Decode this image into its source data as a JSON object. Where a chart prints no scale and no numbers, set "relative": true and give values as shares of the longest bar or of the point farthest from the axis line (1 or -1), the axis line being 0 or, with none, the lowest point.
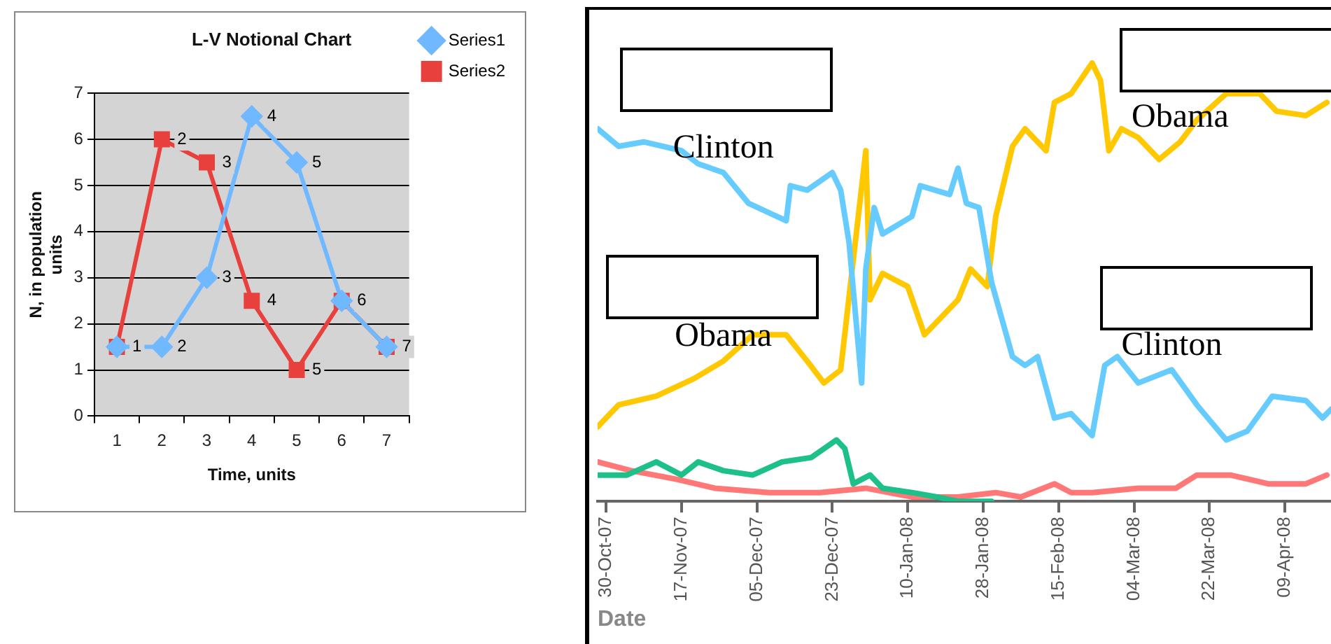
{
  "chart_data": [
    {
      "type": "line",
      "title": "L-V Notional Chart",
      "xlabel": "Time, units",
      "ylabel": "N, in population units",
      "categories": [
        "1",
        "2",
        "3",
        "4",
        "5",
        "6",
        "7"
      ],
      "ylim": [
        0,
        7
      ],
      "yticks": [
        0,
        1,
        2,
        3,
        4,
        5,
        6,
        7
      ],
      "grid": "y",
      "legend": "right",
      "series": [
        {
          "name": "Series1",
          "color": "#70b8ff",
          "marker": "diamond",
          "values": [
            1.5,
            1.5,
            3,
            6.5,
            5.5,
            2.5,
            1.5
          ]
        },
        {
          "name": "Series2",
          "color": "#e8403c",
          "marker": "square",
          "values": [
            1.5,
            6,
            5.5,
            2.5,
            1,
            2.5,
            1.5
          ]
        }
      ],
      "annotations": [
        {
          "text": "1",
          "x": "1",
          "y": 1.5
        },
        {
          "text": "2",
          "x": "2",
          "y": 1.5
        },
        {
          "text": "3",
          "x": "3",
          "y": 3
        },
        {
          "text": "4",
          "x": "4",
          "y": 6.5
        },
        {
          "text": "5",
          "x": "5",
          "y": 5.5
        },
        {
          "text": "2",
          "x": "2",
          "y": 6
        },
        {
          "text": "3",
          "x": "3",
          "y": 5.5
        },
        {
          "text": "4",
          "x": "4",
          "y": 2.5
        },
        {
          "text": "5",
          "x": "5",
          "y": 1
        },
        {
          "text": "6",
          "x": "6",
          "y": 2.5
        },
        {
          "text": "7",
          "x": "7",
          "y": 1.5
        }
      ]
    },
    {
      "type": "line",
      "xlabel": "Date",
      "relative": true,
      "marker": "none",
      "xlim": [
        "2007-10-28",
        "2008-04-20"
      ],
      "xticks": [
        {
          "value": "2007-10-30",
          "label": "30-Oct-07"
        },
        {
          "value": "2007-11-17",
          "label": "17-Nov-07"
        },
        {
          "value": "2007-12-05",
          "label": "05-Dec-07"
        },
        {
          "value": "2007-12-23",
          "label": "23-Dec-07"
        },
        {
          "value": "2008-01-10",
          "label": "10-Jan-08"
        },
        {
          "value": "2008-01-28",
          "label": "28-Jan-08"
        },
        {
          "value": "2008-02-15",
          "label": "15-Feb-08"
        },
        {
          "value": "2008-03-04",
          "label": "04-Mar-08"
        },
        {
          "value": "2008-03-22",
          "label": "22-Mar-08"
        },
        {
          "value": "2008-04-09",
          "label": "09-Apr-08"
        }
      ],
      "annotations": [
        {
          "text": "Clinton",
          "x": "2007-11-27",
          "y": 0.75
        },
        {
          "text": "Obama",
          "x": "2007-11-27",
          "y": 0.32
        },
        {
          "text": "Obama",
          "x": "2008-03-15",
          "y": 0.82
        },
        {
          "text": "Clinton",
          "x": "2008-03-13",
          "y": 0.3
        }
      ],
      "series": [
        {
          "color": "#66ccff",
          "x": [
            "2007-10-28",
            "2007-11-02",
            "2007-11-08",
            "2007-11-17",
            "2007-11-21",
            "2007-11-27",
            "2007-12-03",
            "2007-12-12",
            "2007-12-13",
            "2007-12-17",
            "2007-12-23",
            "2007-12-25",
            "2007-12-27",
            "2007-12-30",
            "2007-12-31",
            "2008-01-02",
            "2008-01-04",
            "2008-01-11",
            "2008-01-13",
            "2008-01-20",
            "2008-01-22",
            "2008-01-24",
            "2008-01-27",
            "2008-01-30",
            "2008-02-04",
            "2008-02-07",
            "2008-02-10",
            "2008-02-14",
            "2008-02-18",
            "2008-02-23",
            "2008-02-26",
            "2008-02-29",
            "2008-03-05",
            "2008-03-13",
            "2008-03-19",
            "2008-03-26",
            "2008-03-31",
            "2008-04-06",
            "2008-04-14",
            "2008-04-18",
            "2008-04-20"
          ],
          "values": [
            0.85,
            0.81,
            0.82,
            0.8,
            0.77,
            0.75,
            0.68,
            0.64,
            0.72,
            0.71,
            0.75,
            0.71,
            0.59,
            0.27,
            0.53,
            0.67,
            0.61,
            0.65,
            0.72,
            0.7,
            0.76,
            0.68,
            0.67,
            0.5,
            0.33,
            0.31,
            0.33,
            0.19,
            0.2,
            0.15,
            0.31,
            0.33,
            0.27,
            0.3,
            0.22,
            0.14,
            0.16,
            0.24,
            0.23,
            0.19,
            0.21
          ]
        },
        {
          "color": "#ffc800",
          "x": [
            "2007-10-28",
            "2007-11-02",
            "2007-11-11",
            "2007-11-20",
            "2007-11-27",
            "2007-12-04",
            "2007-12-12",
            "2007-12-17",
            "2007-12-21",
            "2007-12-25",
            "2007-12-28",
            "2007-12-31",
            "2008-01-01",
            "2008-01-04",
            "2008-01-10",
            "2008-01-14",
            "2008-01-20",
            "2008-01-22",
            "2008-01-25",
            "2008-01-29",
            "2008-01-31",
            "2008-02-04",
            "2008-02-07",
            "2008-02-12",
            "2008-02-14",
            "2008-02-18",
            "2008-02-23",
            "2008-02-25",
            "2008-02-27",
            "2008-03-01",
            "2008-03-05",
            "2008-03-10",
            "2008-03-15",
            "2008-03-19",
            "2008-03-26",
            "2008-04-03",
            "2008-04-07",
            "2008-04-14",
            "2008-04-19"
          ],
          "values": [
            0.17,
            0.22,
            0.24,
            0.28,
            0.32,
            0.38,
            0.38,
            0.32,
            0.27,
            0.3,
            0.55,
            0.8,
            0.46,
            0.52,
            0.49,
            0.38,
            0.44,
            0.46,
            0.53,
            0.49,
            0.65,
            0.81,
            0.85,
            0.8,
            0.91,
            0.93,
            1,
            0.96,
            0.8,
            0.85,
            0.83,
            0.78,
            0.82,
            0.87,
            0.93,
            0.93,
            0.89,
            0.88,
            0.91
          ]
        },
        {
          "color": "#1ec08a",
          "x": [
            "2007-10-28",
            "2007-11-04",
            "2007-11-11",
            "2007-11-17",
            "2007-11-21",
            "2007-11-27",
            "2007-12-04",
            "2007-12-11",
            "2007-12-18",
            "2007-12-24",
            "2007-12-26",
            "2007-12-28",
            "2008-01-01",
            "2008-01-04",
            "2008-01-11",
            "2008-01-17",
            "2008-01-22",
            "2008-01-30"
          ],
          "values": [
            0.06,
            0.06,
            0.09,
            0.06,
            0.09,
            0.07,
            0.06,
            0.09,
            0.1,
            0.14,
            0.12,
            0.04,
            0.06,
            0.03,
            0.02,
            0.01,
            0,
            0
          ]
        },
        {
          "color": "#ff7777",
          "x": [
            "2007-10-28",
            "2007-11-05",
            "2007-11-16",
            "2007-11-25",
            "2007-12-08",
            "2007-12-20",
            "2007-12-31",
            "2008-01-11",
            "2008-01-22",
            "2008-01-31",
            "2008-02-06",
            "2008-02-14",
            "2008-02-18",
            "2008-02-23",
            "2008-03-05",
            "2008-03-14",
            "2008-03-19",
            "2008-03-27",
            "2008-04-05",
            "2008-04-14",
            "2008-04-19"
          ],
          "values": [
            0.09,
            0.07,
            0.05,
            0.03,
            0.02,
            0.02,
            0.03,
            0.01,
            0.01,
            0.02,
            0.01,
            0.04,
            0.02,
            0.02,
            0.03,
            0.03,
            0.06,
            0.06,
            0.04,
            0.04,
            0.06
          ]
        }
      ]
    }
  ]
}
